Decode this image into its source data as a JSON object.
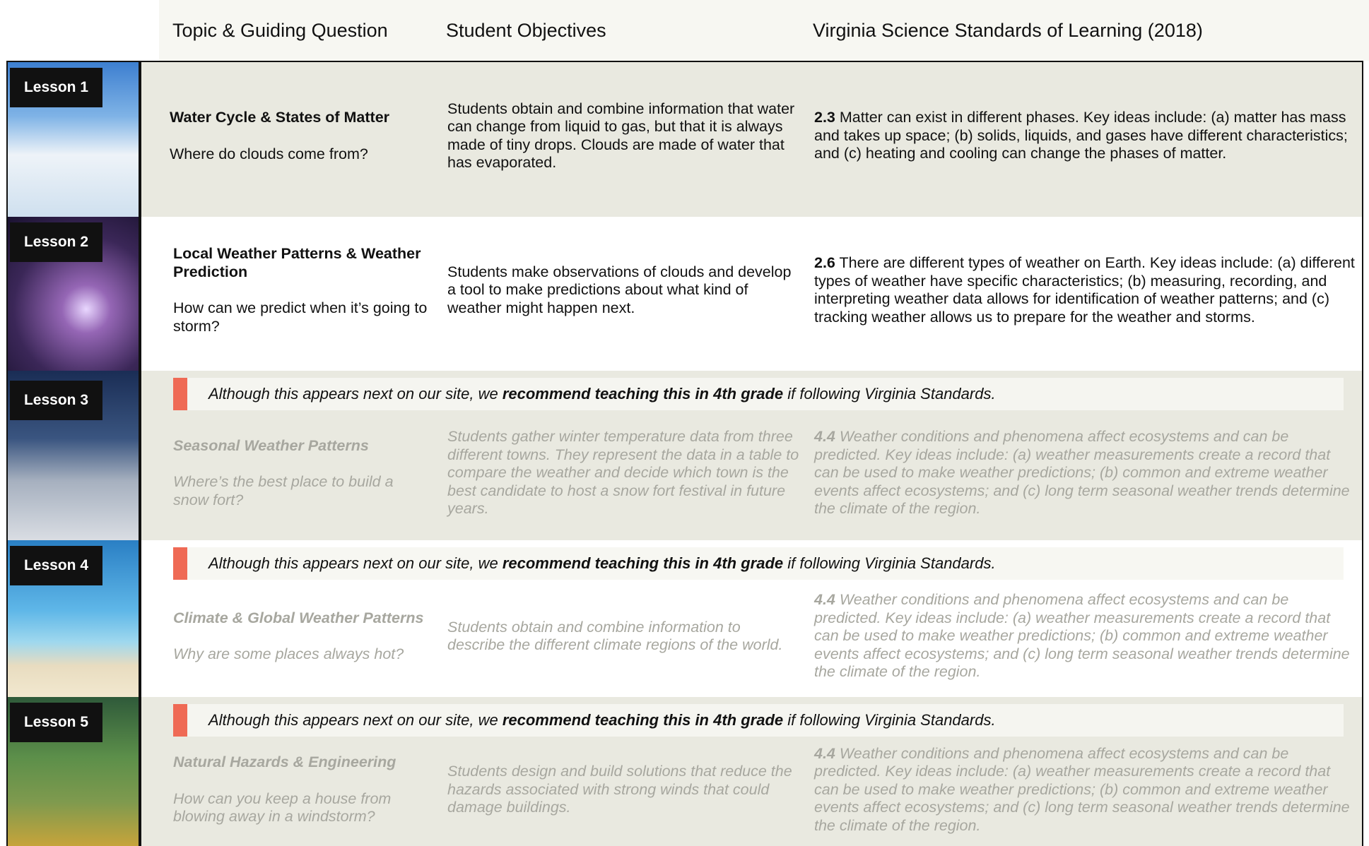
{
  "header": {
    "columns": [
      "Topic & Guiding Question",
      "Student Objectives",
      "Virginia Science Standards of Learning (2018)"
    ]
  },
  "lessons": [
    {
      "label": "Lesson 1",
      "topic": "Water Cycle & States of Matter",
      "question": "Where do clouds come from?",
      "objectives": "Students obtain and combine information that water can change from liquid to gas, but that it is always made of tiny drops. Clouds are made of water that has evaporated.",
      "standard_code": "2.3",
      "standard_text": "Matter can exist in different phases. Key ideas include: (a) matter has mass and takes up space; (b) solids, liquids, and gases have different characteristics; and (c) heating and cooling can change the phases of matter."
    },
    {
      "label": "Lesson 2",
      "topic": "Local Weather Patterns & Weather Prediction",
      "question": "How can we predict when it’s going to storm?",
      "objectives": "Students make observations of clouds and develop a tool to make predictions about what kind of weather might happen next.",
      "standard_code": "2.6",
      "standard_text": "There are different types of weather on Earth. Key ideas include: (a) different types of weather have specific characteristics; (b) measuring, recording, and interpreting weather data allows for identification of weather patterns; and (c) tracking weather allows us to prepare for the weather and storms."
    },
    {
      "label": "Lesson 3",
      "notice": {
        "before": "Although this appears next on our site, we",
        "bold": "recommend teaching this in 4th grade",
        "after": "if following Virginia Standards."
      },
      "topic": "Seasonal Weather Patterns",
      "question": "Where’s the best place to build a snow fort?",
      "objectives": "Students gather winter temperature data from three different towns. They represent the data in a table to compare the weather and decide which town is the best candidate to host a snow fort festival in future years.",
      "standard_code": "4.4",
      "standard_text": "Weather conditions and phenomena affect ecosystems and can be predicted. Key ideas include: (a) weather measurements create a record that can be used to make weather predictions; (b) common and extreme weather events affect ecosystems; and (c) long term seasonal weather trends determine the climate of the region."
    },
    {
      "label": "Lesson 4",
      "notice": {
        "before": "Although this appears next on our site, we",
        "bold": "recommend teaching this in 4th grade",
        "after": "if following Virginia Standards."
      },
      "topic": "Climate & Global Weather Patterns",
      "question": "Why are some places always hot?",
      "objectives": "Students obtain and combine information to describe the different climate regions of the world.",
      "standard_code": "4.4",
      "standard_text": "Weather conditions and phenomena affect ecosystems and can be predicted. Key ideas include: (a) weather measurements create a record that can be used to make weather predictions; (b) common and extreme weather events affect ecosystems; and (c) long term seasonal weather trends determine the climate of the region."
    },
    {
      "label": "Lesson 5",
      "notice": {
        "before": "Although this appears next on our site, we",
        "bold": "recommend teaching this in 4th grade",
        "after": "if following Virginia Standards."
      },
      "topic": "Natural Hazards & Engineering",
      "question": "How can you keep a house from blowing away in a windstorm?",
      "objectives": "Students design and build solutions that reduce the hazards associated with strong winds that could damage buildings.",
      "standard_code": "4.4",
      "standard_text": "Weather conditions and phenomena affect ecosystems and can be predicted. Key ideas include: (a) weather measurements create a record that can be used to make weather predictions; (b) common and extreme weather events affect ecosystems; and (c) long term seasonal weather trends determine the climate of the region."
    }
  ]
}
